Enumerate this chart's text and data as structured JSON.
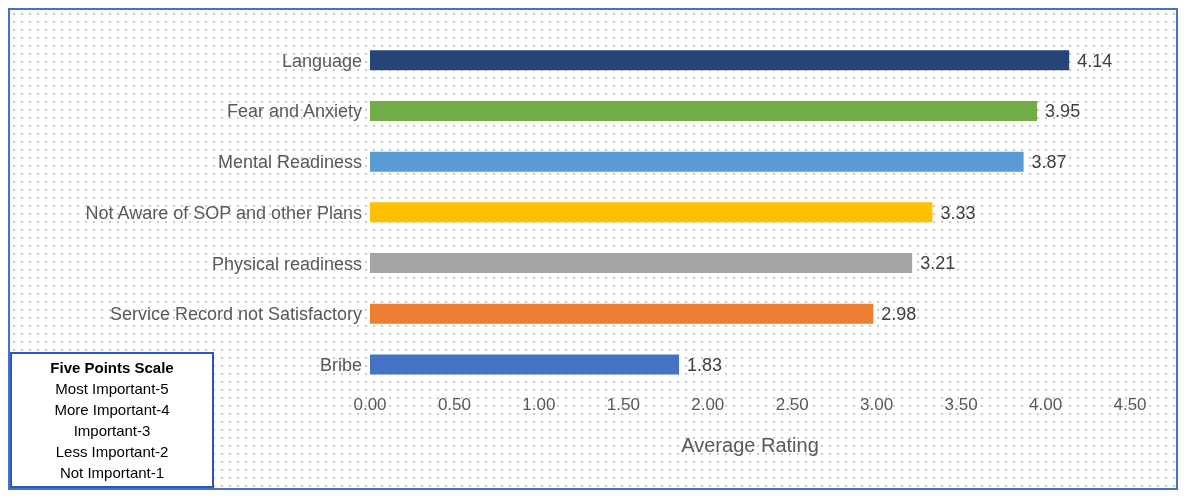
{
  "chart_data": {
    "type": "bar",
    "orientation": "horizontal",
    "xlabel": "Average Rating",
    "categories": [
      "Language",
      "Fear and Anxiety",
      "Mental Readiness",
      "Not Aware of SOP and other Plans",
      "Physical readiness",
      "Service Record not Satisfactory",
      "Bribe"
    ],
    "values": [
      4.14,
      3.95,
      3.87,
      3.33,
      3.21,
      2.98,
      1.83
    ],
    "colors": [
      "#264478",
      "#70ad47",
      "#5b9bd5",
      "#ffc000",
      "#a5a5a5",
      "#ed7d31",
      "#4472c4"
    ],
    "xlim": [
      0,
      4.5
    ],
    "xticks": [
      {
        "value": 0,
        "label": "0.00"
      },
      {
        "value": 0.5,
        "label": "0.50"
      },
      {
        "value": 1,
        "label": "1.00"
      },
      {
        "value": 1.5,
        "label": "1.50"
      },
      {
        "value": 2,
        "label": "2.00"
      },
      {
        "value": 2.5,
        "label": "2.50"
      },
      {
        "value": 3,
        "label": "3.00"
      },
      {
        "value": 3.5,
        "label": "3.50"
      },
      {
        "value": 4,
        "label": "4.00"
      },
      {
        "value": 4.5,
        "label": "4.50"
      }
    ],
    "data_labels": true,
    "annotations": [
      "Five Points Scale",
      "Most Important-5",
      "More Important-4",
      "Important-3",
      "Less Important-2",
      "Not Important-1"
    ]
  }
}
